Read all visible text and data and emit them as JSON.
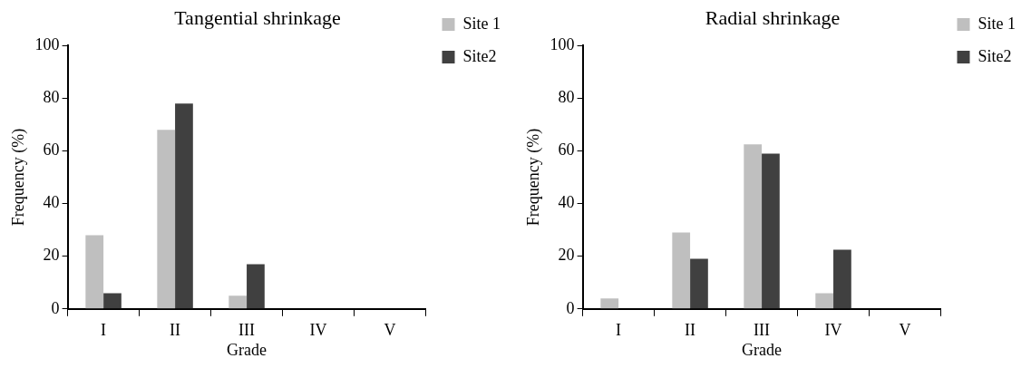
{
  "chart_data": [
    {
      "type": "bar",
      "title": "Tangential shrinkage",
      "xlabel": "Grade",
      "ylabel": "Frequency (%)",
      "categories": [
        "I",
        "II",
        "III",
        "IV",
        "V"
      ],
      "series": [
        {
          "name": "Site 1",
          "color": "#bfbfbf",
          "values": [
            28,
            68,
            5,
            0,
            0
          ]
        },
        {
          "name": "Site2",
          "color": "#404040",
          "values": [
            6,
            78,
            17,
            0,
            0
          ]
        }
      ],
      "ylim": [
        0,
        100
      ],
      "yticks": [
        0,
        20,
        40,
        60,
        80,
        100
      ],
      "grid": false,
      "legend": "top right"
    },
    {
      "type": "bar",
      "title": "Radial shrinkage",
      "xlabel": "Grade",
      "ylabel": "Frequency (%)",
      "categories": [
        "I",
        "II",
        "III",
        "IV",
        "V"
      ],
      "series": [
        {
          "name": "Site 1",
          "color": "#bfbfbf",
          "values": [
            4,
            29,
            62.5,
            6,
            0
          ]
        },
        {
          "name": "Site2",
          "color": "#404040",
          "values": [
            0,
            19,
            59,
            22.5,
            0
          ]
        }
      ],
      "ylim": [
        0,
        100
      ],
      "yticks": [
        0,
        20,
        40,
        60,
        80,
        100
      ],
      "grid": false,
      "legend": "top right"
    }
  ]
}
